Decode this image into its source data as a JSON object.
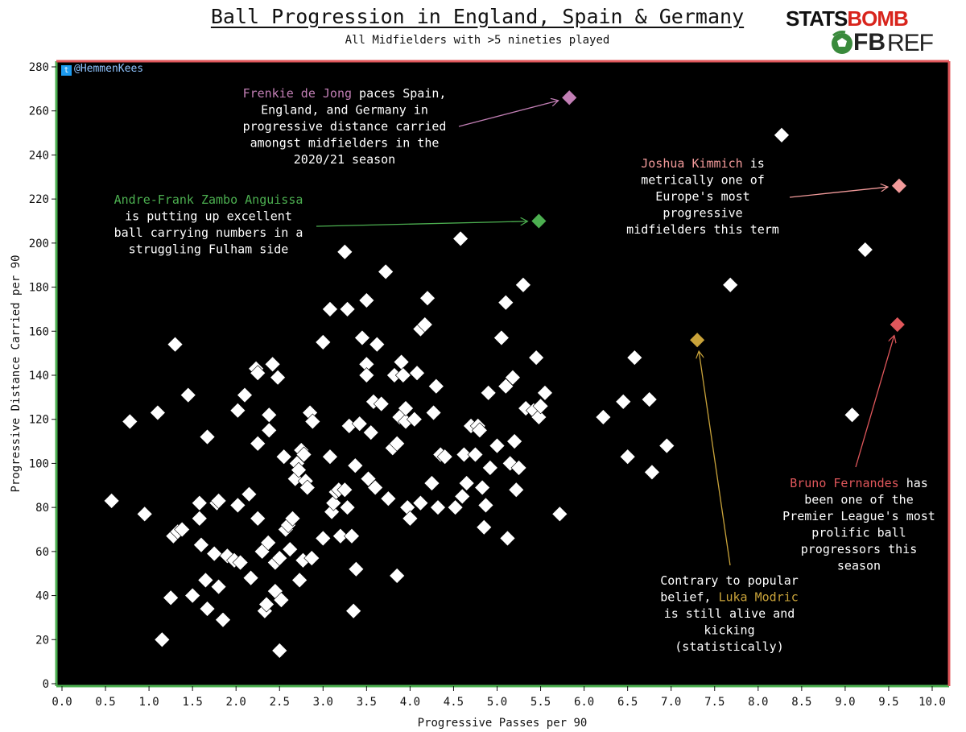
{
  "header": {
    "title": "Ball Progression in England, Spain & Germany",
    "subtitle": "All Midfielders with >5 nineties played"
  },
  "logos": {
    "statsbomb_part1": "STATS",
    "statsbomb_part2": "BOMB",
    "fbref_part1": "FB",
    "fbref_part2": "REF"
  },
  "handle": "@HemmenKees",
  "colors": {
    "background": "#000000",
    "point": "#ffffff",
    "dejong": "#c27fb5",
    "anguissa": "#4caf50",
    "kimmich": "#f29a9a",
    "fernandes": "#e0575b",
    "modric": "#c9a33a",
    "frame_left": "#4caf50",
    "frame_right": "#e0575b"
  },
  "chart_data": {
    "type": "scatter",
    "title": "Ball Progression in England, Spain & Germany",
    "subtitle": "All Midfielders with >5 nineties played",
    "xlabel": "Progressive Passes per 90",
    "ylabel": "Progressive Distance Carried per 90",
    "xlim": [
      0,
      10
    ],
    "ylim": [
      0,
      280
    ],
    "xticks": [
      "0.0",
      "0.5",
      "1.0",
      "1.5",
      "2.0",
      "2.5",
      "3.0",
      "3.5",
      "4.0",
      "4.5",
      "5.0",
      "5.5",
      "6.0",
      "6.5",
      "7.0",
      "7.5",
      "8.0",
      "8.5",
      "9.0",
      "9.5",
      "10.0"
    ],
    "yticks": [
      "0",
      "20",
      "40",
      "60",
      "80",
      "100",
      "120",
      "140",
      "160",
      "180",
      "200",
      "220",
      "240",
      "260",
      "280"
    ],
    "grid": false,
    "points": [
      [
        0.57,
        83
      ],
      [
        0.78,
        119
      ],
      [
        0.95,
        77
      ],
      [
        1.1,
        123
      ],
      [
        1.15,
        20
      ],
      [
        1.25,
        39
      ],
      [
        1.28,
        67
      ],
      [
        1.3,
        154
      ],
      [
        1.33,
        69
      ],
      [
        1.38,
        70
      ],
      [
        1.45,
        131
      ],
      [
        1.5,
        40
      ],
      [
        1.58,
        75
      ],
      [
        1.58,
        82
      ],
      [
        1.6,
        63
      ],
      [
        1.65,
        47
      ],
      [
        1.67,
        34
      ],
      [
        1.67,
        112
      ],
      [
        1.75,
        59
      ],
      [
        1.78,
        82
      ],
      [
        1.8,
        44
      ],
      [
        1.8,
        83
      ],
      [
        1.85,
        29
      ],
      [
        1.9,
        58
      ],
      [
        1.98,
        56
      ],
      [
        2.02,
        124
      ],
      [
        2.02,
        81
      ],
      [
        2.05,
        55
      ],
      [
        2.1,
        131
      ],
      [
        2.15,
        86
      ],
      [
        2.17,
        48
      ],
      [
        2.23,
        143
      ],
      [
        2.25,
        141
      ],
      [
        2.25,
        109
      ],
      [
        2.25,
        75
      ],
      [
        2.3,
        60
      ],
      [
        2.33,
        33
      ],
      [
        2.35,
        36
      ],
      [
        2.37,
        64
      ],
      [
        2.38,
        122
      ],
      [
        2.38,
        115
      ],
      [
        2.42,
        145
      ],
      [
        2.45,
        55
      ],
      [
        2.45,
        42
      ],
      [
        2.48,
        139
      ],
      [
        2.5,
        15
      ],
      [
        2.5,
        57
      ],
      [
        2.52,
        38
      ],
      [
        2.55,
        103
      ],
      [
        2.57,
        70
      ],
      [
        2.6,
        72
      ],
      [
        2.62,
        61
      ],
      [
        2.65,
        75
      ],
      [
        2.68,
        93
      ],
      [
        2.7,
        100
      ],
      [
        2.72,
        97
      ],
      [
        2.73,
        47
      ],
      [
        2.75,
        106
      ],
      [
        2.77,
        56
      ],
      [
        2.78,
        104
      ],
      [
        2.8,
        92
      ],
      [
        2.82,
        89
      ],
      [
        2.85,
        123
      ],
      [
        2.87,
        57
      ],
      [
        2.88,
        119
      ],
      [
        3.0,
        155
      ],
      [
        3.0,
        66
      ],
      [
        3.08,
        103
      ],
      [
        3.08,
        170
      ],
      [
        3.1,
        78
      ],
      [
        3.12,
        82
      ],
      [
        3.15,
        87
      ],
      [
        3.18,
        88
      ],
      [
        3.2,
        67
      ],
      [
        3.25,
        196
      ],
      [
        3.25,
        88
      ],
      [
        3.28,
        80
      ],
      [
        3.28,
        170
      ],
      [
        3.3,
        117
      ],
      [
        3.33,
        67
      ],
      [
        3.35,
        33
      ],
      [
        3.37,
        99
      ],
      [
        3.38,
        52
      ],
      [
        3.42,
        118
      ],
      [
        3.45,
        157
      ],
      [
        3.5,
        145
      ],
      [
        3.5,
        174
      ],
      [
        3.5,
        140
      ],
      [
        3.52,
        93
      ],
      [
        3.55,
        114
      ],
      [
        3.58,
        128
      ],
      [
        3.6,
        89
      ],
      [
        3.62,
        154
      ],
      [
        3.67,
        127
      ],
      [
        3.72,
        187
      ],
      [
        3.75,
        84
      ],
      [
        3.8,
        107
      ],
      [
        3.82,
        140
      ],
      [
        3.85,
        109
      ],
      [
        3.85,
        49
      ],
      [
        3.88,
        121
      ],
      [
        3.9,
        146
      ],
      [
        3.92,
        140
      ],
      [
        3.95,
        119
      ],
      [
        3.95,
        125
      ],
      [
        3.97,
        80
      ],
      [
        4.0,
        75
      ],
      [
        4.05,
        120
      ],
      [
        4.08,
        141
      ],
      [
        4.12,
        161
      ],
      [
        4.12,
        82
      ],
      [
        4.17,
        163
      ],
      [
        4.2,
        175
      ],
      [
        4.25,
        91
      ],
      [
        4.27,
        123
      ],
      [
        4.3,
        135
      ],
      [
        4.32,
        80
      ],
      [
        4.35,
        104
      ],
      [
        4.4,
        103
      ],
      [
        4.52,
        80
      ],
      [
        4.58,
        202
      ],
      [
        4.6,
        85
      ],
      [
        4.62,
        104
      ],
      [
        4.65,
        91
      ],
      [
        4.7,
        117
      ],
      [
        4.75,
        104
      ],
      [
        4.78,
        117
      ],
      [
        4.8,
        115
      ],
      [
        4.83,
        89
      ],
      [
        4.85,
        71
      ],
      [
        4.87,
        81
      ],
      [
        4.9,
        132
      ],
      [
        4.92,
        98
      ],
      [
        5.0,
        108
      ],
      [
        5.05,
        157
      ],
      [
        5.1,
        135
      ],
      [
        5.1,
        173
      ],
      [
        5.12,
        66
      ],
      [
        5.15,
        100
      ],
      [
        5.18,
        139
      ],
      [
        5.2,
        110
      ],
      [
        5.22,
        88
      ],
      [
        5.25,
        98
      ],
      [
        5.3,
        181
      ],
      [
        5.33,
        125
      ],
      [
        5.42,
        124
      ],
      [
        5.45,
        148
      ],
      [
        5.48,
        121
      ],
      [
        5.5,
        126
      ],
      [
        5.55,
        132
      ],
      [
        5.72,
        77
      ],
      [
        6.22,
        121
      ],
      [
        6.45,
        128
      ],
      [
        6.5,
        103
      ],
      [
        6.58,
        148
      ],
      [
        6.75,
        129
      ],
      [
        6.78,
        96
      ],
      [
        6.95,
        108
      ],
      [
        7.68,
        181
      ],
      [
        8.27,
        249
      ],
      [
        9.08,
        122
      ],
      [
        9.23,
        197
      ]
    ],
    "highlighted": [
      {
        "name": "Frenkie de Jong",
        "x": 5.83,
        "y": 266,
        "color": "#c27fb5"
      },
      {
        "name": "Andre-Frank Zambo Anguissa",
        "x": 5.48,
        "y": 210,
        "color": "#4caf50"
      },
      {
        "name": "Joshua Kimmich",
        "x": 9.62,
        "y": 226,
        "color": "#f29a9a"
      },
      {
        "name": "Bruno Fernandes",
        "x": 9.6,
        "y": 163,
        "color": "#e0575b"
      },
      {
        "name": "Luka Modric",
        "x": 7.3,
        "y": 156,
        "color": "#c9a33a"
      }
    ],
    "annotations": [
      {
        "player": "Frenkie de Jong",
        "color": "#c27fb5",
        "lines": [
          [
            "Frenkie de Jong",
            " paces Spain,"
          ],
          [
            "England, and Germany in"
          ],
          [
            "progressive distance carried"
          ],
          [
            "amongst midfielders in the"
          ],
          [
            "2020/21 season"
          ]
        ]
      },
      {
        "player": "Andre-Frank Zambo Anguissa",
        "color": "#4caf50",
        "lines": [
          [
            "Andre-Frank Zambo Anguissa"
          ],
          [
            "is putting up excellent"
          ],
          [
            "ball carrying numbers in a"
          ],
          [
            "struggling Fulham side"
          ]
        ]
      },
      {
        "player": "Joshua Kimmich",
        "color": "#f29a9a",
        "lines": [
          [
            "Joshua Kimmich",
            " is"
          ],
          [
            "metrically one of"
          ],
          [
            "Europe's most"
          ],
          [
            "progressive"
          ],
          [
            "midfielders this term"
          ]
        ]
      },
      {
        "player": "Bruno Fernandes",
        "color": "#e0575b",
        "lines": [
          [
            "Bruno Fernandes",
            " has"
          ],
          [
            "been one of the"
          ],
          [
            "Premier League's most"
          ],
          [
            "prolific ball"
          ],
          [
            "progressors this"
          ],
          [
            "season"
          ]
        ]
      },
      {
        "player": "Luka Modric",
        "color": "#c9a33a",
        "lines": [
          [
            "Contrary to popular"
          ],
          [
            "belief, ",
            "Luka Modric"
          ],
          [
            "is still alive and"
          ],
          [
            "kicking"
          ],
          [
            "(statistically)"
          ]
        ]
      }
    ]
  }
}
